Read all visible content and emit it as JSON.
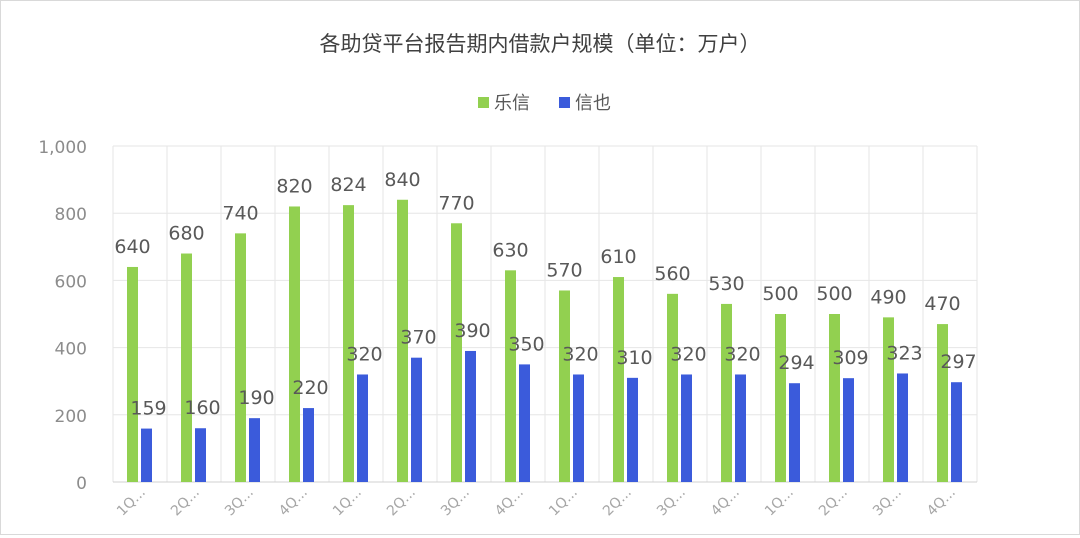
{
  "chart_data": {
    "type": "bar",
    "title": "各助贷平台报告期内借款户规模（单位：万户）",
    "xlabel": "",
    "ylabel": "",
    "ylim": [
      0,
      1000
    ],
    "yticks": [
      "0",
      "200",
      "400",
      "600",
      "800",
      "1,000"
    ],
    "grid": true,
    "legend_position": "top-center",
    "categories": [
      "1Q...",
      "2Q...",
      "3Q...",
      "4Q...",
      "1Q...",
      "2Q...",
      "3Q...",
      "4Q...",
      "1Q...",
      "2Q...",
      "3Q...",
      "4Q...",
      "1Q...",
      "2Q...",
      "3Q...",
      "4Q..."
    ],
    "series": [
      {
        "name": "乐信",
        "color": "#92d050",
        "values": [
          640,
          680,
          740,
          820,
          824,
          840,
          770,
          630,
          570,
          610,
          560,
          530,
          500,
          500,
          490,
          470
        ]
      },
      {
        "name": "信也",
        "color": "#3b5bdb",
        "values": [
          159,
          160,
          190,
          220,
          320,
          370,
          390,
          350,
          320,
          310,
          320,
          320,
          294,
          309,
          323,
          297
        ]
      }
    ]
  }
}
